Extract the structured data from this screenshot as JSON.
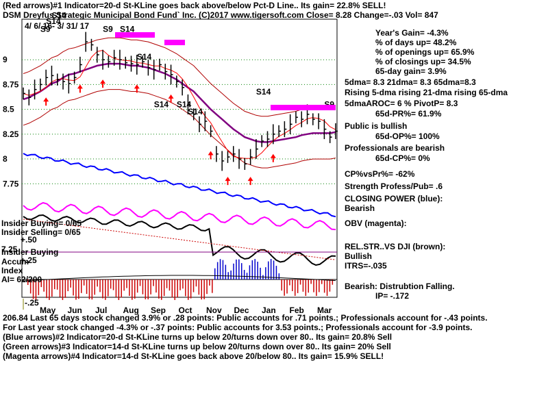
{
  "header": {
    "line1": "(Red arrows)#1 Indicator=20-d St-KLine goes back above/below Pct-D Line.. Its gain= 22.8% SELL!",
    "line2": "DSM   Dreyfus Strategic Municipal Bond Fund` Inc.  (C)2017 www.tigersoft.com     Close=  8.28  Change=-.03 Vol=  847",
    "line3": "4/ 6/ 16- 3/ 31/ 17"
  },
  "stats": [
    "Year's Gain= -4.3%",
    "% of days up= 48.2%",
    "% of openings up= 65.9%",
    "% of closings up= 34.5%",
    "65-day gain= 3.9%",
    "5dma= 8.3 21dma= 8.3 65dma=8.3",
    "Rising 5-dma rising 21-dma rising 65-dma",
    "5dmaAROC= 6 %  PivotP= 8.3",
    "65d-PR%= 61.9%",
    "Public is bullish",
    "65d-OP%= 100%",
    "Professionals are bearish",
    "65d-CP%= 0%",
    "CP%vsPr%= -62%",
    "Strength Profess/Pub= .6",
    "CLOSING POWER (blue):",
    "Bearish",
    "OBV (magenta):",
    "REL.STR..VS DJI (brown):",
    "Bullish",
    "ITRS=-.035",
    "Bearish: Distrubtion Falling.",
    "IP= -.172"
  ],
  "left_panel": {
    "insider_buying": "Insider Buying= 0/65",
    "insider_selling": "Insider Selling= 0/65",
    "insider_buying2": "Insider Buying",
    "accum": "Accum",
    "index": "Index",
    "ai": "AI= 62/200",
    "tick_p50": "+.50",
    "tick_p25": "+.25",
    "tick_m25": "-.25",
    "tick_725": "7.25"
  },
  "footer": {
    "line1": "206.84  Last 65 days stock changed  3.9% or  .28 points:  Public accounts for  .71 points.;  Professionals account for -.43 points.",
    "line2": "For Last year stock changed -4.3% or -.37 points:  Public accounts for  3.53 points.;  Professionals account for -3.9 points.",
    "line3": "(Blue arrows)#2 Indicator=20-d St-KLine turns up below 20/turns down over 80.. Its gain= 20.8% Sell",
    "line4": "(Green arrows)#3 Indicator=14-d St-KLine turns up below 20/turns down over 80.. Its gain= 20% Sell",
    "line5": "(Magenta arrows)#4 Indicator=14-d St-KLine goes back above 20/below 80.. Its gain= 15.9% SELL!"
  },
  "chart_data": {
    "type": "line",
    "x_labels": [
      "May",
      "Jun",
      "Jul",
      "Aug",
      "Sep",
      "Oct",
      "Nov",
      "Dec",
      "Jan",
      "Feb",
      "Mar"
    ],
    "y_ticks": [
      "9",
      "8.75",
      "8.5",
      "8.25",
      "8",
      "7.75"
    ],
    "y_tick_values": [
      9,
      8.75,
      8.5,
      8.25,
      8,
      7.75
    ],
    "ylim": [
      7.6,
      9.45
    ],
    "close": [
      8.66,
      8.62,
      8.7,
      8.75,
      8.82,
      8.84,
      8.8,
      8.78,
      8.76,
      8.82,
      8.95,
      9.18,
      9.15,
      9.05,
      9.0,
      8.98,
      9.02,
      9.0,
      8.97,
      8.96,
      8.95,
      8.98,
      8.92,
      8.9,
      8.95,
      8.88,
      8.85,
      8.78,
      8.72,
      8.55,
      8.45,
      8.35,
      8.38,
      8.28,
      8.05,
      7.98,
      8.02,
      8.05,
      8.0,
      7.95,
      8.02,
      8.1,
      8.18,
      8.2,
      8.25,
      8.28,
      8.3,
      8.35,
      8.42,
      8.4,
      8.45,
      8.4,
      8.38,
      8.3,
      8.22,
      8.28
    ],
    "ma": [
      8.6,
      8.62,
      8.65,
      8.68,
      8.72,
      8.76,
      8.78,
      8.82,
      8.85,
      8.86,
      8.88,
      8.9,
      8.92,
      8.94,
      8.95,
      8.96,
      8.96,
      8.96,
      8.95,
      8.94,
      8.94,
      8.93,
      8.92,
      8.9,
      8.88,
      8.86,
      8.83,
      8.8,
      8.76,
      8.72,
      8.68,
      8.62,
      8.56,
      8.5,
      8.45,
      8.4,
      8.35,
      8.3,
      8.26,
      8.22,
      8.2,
      8.18,
      8.17,
      8.17,
      8.18,
      8.19,
      8.2,
      8.21,
      8.22,
      8.24,
      8.25,
      8.26,
      8.26,
      8.26,
      8.26,
      8.27
    ],
    "signals": [
      {
        "label": "S9",
        "i": 3,
        "y": 9.28
      },
      {
        "label": "S14",
        "i": 4,
        "y": 9.36
      },
      {
        "label": "S14",
        "i": 5,
        "y": 9.42
      },
      {
        "label": "S9",
        "i": 14,
        "y": 9.28
      },
      {
        "label": "S14",
        "i": 17,
        "y": 9.28
      },
      {
        "label": "S14",
        "i": 20,
        "y": 9.0
      },
      {
        "label": "S14",
        "i": 23,
        "y": 8.52
      },
      {
        "label": "S14",
        "i": 27,
        "y": 8.52
      },
      {
        "label": "S14",
        "i": 29,
        "y": 8.45
      },
      {
        "label": "S14",
        "i": 41,
        "y": 8.65
      },
      {
        "label": "S9",
        "i": 53,
        "y": 8.52
      }
    ]
  }
}
